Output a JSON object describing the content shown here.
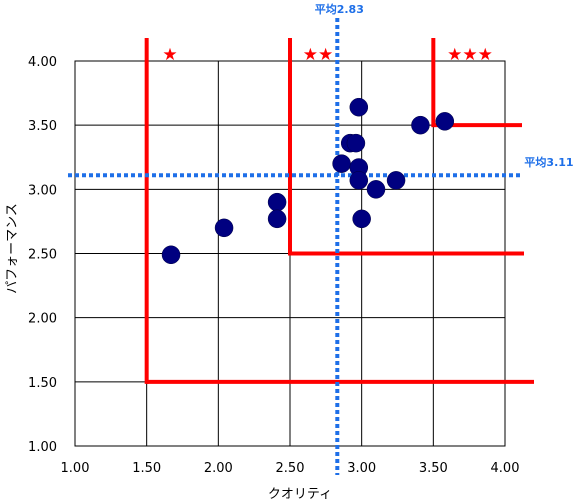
{
  "chart_data": {
    "type": "scatter",
    "xlabel": "クオリティ",
    "ylabel": "パフォーマンス",
    "xlim": [
      1.0,
      4.0
    ],
    "ylim": [
      1.0,
      4.0
    ],
    "x_ticks": [
      "1.00",
      "1.50",
      "2.00",
      "2.50",
      "3.00",
      "3.50",
      "4.00"
    ],
    "y_ticks": [
      "1.00",
      "1.50",
      "2.00",
      "2.50",
      "3.00",
      "3.50",
      "4.00"
    ],
    "grid": true,
    "points": [
      {
        "x": 1.67,
        "y": 2.49
      },
      {
        "x": 2.04,
        "y": 2.7
      },
      {
        "x": 2.41,
        "y": 2.9
      },
      {
        "x": 2.41,
        "y": 2.77
      },
      {
        "x": 2.86,
        "y": 3.2
      },
      {
        "x": 2.92,
        "y": 3.36
      },
      {
        "x": 2.96,
        "y": 3.36
      },
      {
        "x": 2.98,
        "y": 3.64
      },
      {
        "x": 2.98,
        "y": 3.17
      },
      {
        "x": 2.98,
        "y": 3.07
      },
      {
        "x": 3.0,
        "y": 2.77
      },
      {
        "x": 3.1,
        "y": 3.0
      },
      {
        "x": 3.24,
        "y": 3.07
      },
      {
        "x": 3.41,
        "y": 3.5
      },
      {
        "x": 3.58,
        "y": 3.53
      }
    ],
    "mean_lines": {
      "x": {
        "value": 2.83,
        "label": "平均2.83"
      },
      "y": {
        "value": 3.11,
        "label": "平均3.11"
      }
    },
    "zones": [
      {
        "corner_x": 1.5,
        "corner_y": 1.5,
        "stars": "★"
      },
      {
        "corner_x": 2.5,
        "corner_y": 2.5,
        "stars": "★★"
      },
      {
        "corner_x": 3.5,
        "corner_y": 3.5,
        "stars": "★★★"
      }
    ],
    "colors": {
      "point": "#000080",
      "mean_line": "#1E6FE8",
      "zone_line": "#FF0000",
      "grid": "#000000"
    }
  }
}
